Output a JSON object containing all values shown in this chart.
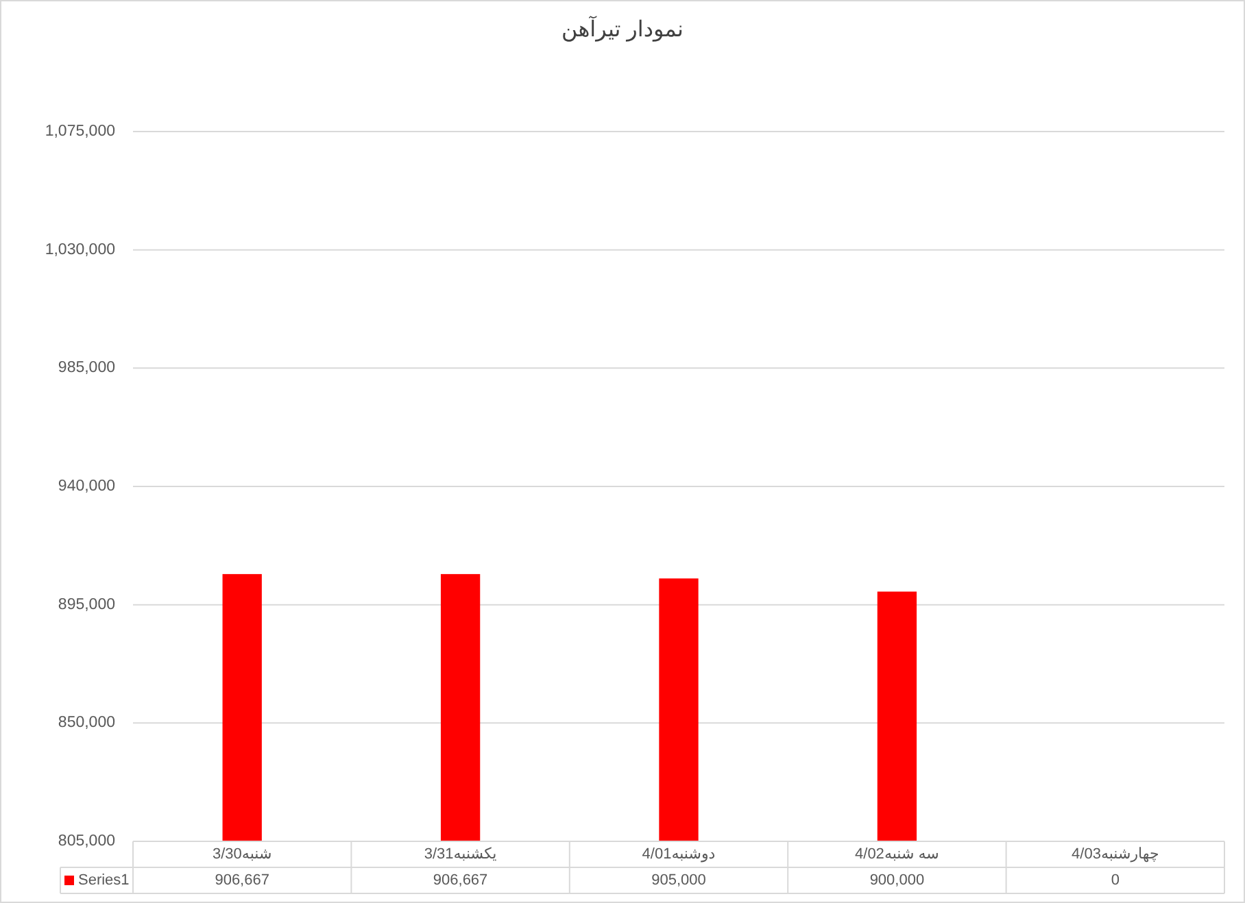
{
  "chart_data": {
    "type": "bar",
    "title": "نمودار تیرآهن",
    "categories": [
      "شنبه3/30",
      "یکشنبه3/31",
      "دوشنبه4/01",
      "سه شنبه4/02",
      "چهارشنبه4/03"
    ],
    "series": [
      {
        "name": "Series1",
        "color": "#ff0000",
        "values": [
          906667,
          906667,
          905000,
          900000,
          null
        ],
        "value_labels": [
          "906,667",
          "906,667",
          "905,000",
          "900,000",
          "0"
        ]
      }
    ],
    "ylim": [
      805000,
      1075000
    ],
    "yticks": [
      {
        "value": 805000,
        "label": "805,000"
      },
      {
        "value": 850000,
        "label": "850,000"
      },
      {
        "value": 895000,
        "label": "895,000"
      },
      {
        "value": 940000,
        "label": "940,000"
      },
      {
        "value": 985000,
        "label": "985,000"
      },
      {
        "value": 1030000,
        "label": "1,030,000"
      },
      {
        "value": 1075000,
        "label": "1,075,000"
      }
    ],
    "grid": "y",
    "legend": "bottom"
  }
}
